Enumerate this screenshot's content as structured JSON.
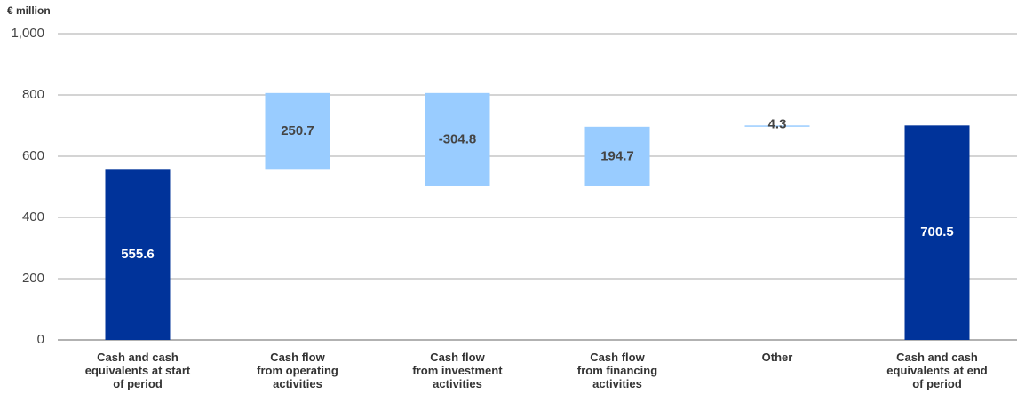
{
  "chart_data": {
    "type": "waterfall",
    "y_unit": "€ million",
    "categories": [
      "Cash and cash\nequivalents at start\nof period",
      "Cash flow\nfrom operating\nactivities",
      "Cash flow\nfrom investment\nactivities",
      "Cash flow\nfrom financing\nactivities",
      "Other",
      "Cash and cash\nequivalents at end\nof period"
    ],
    "values": [
      555.6,
      250.7,
      -304.8,
      194.7,
      4.3,
      700.5
    ],
    "measure": [
      "absolute",
      "relative",
      "relative",
      "relative",
      "relative",
      "total"
    ],
    "colors": {
      "absolute": "#00339a",
      "relative": "#99ccff",
      "total": "#00339a"
    },
    "label_colors": {
      "absolute": "#ffffff",
      "relative": "#444444",
      "total": "#ffffff"
    },
    "ylim": [
      0,
      1000
    ],
    "yticks": [
      0,
      200,
      400,
      600,
      800,
      {
        "value": 1000,
        "label": "1,000"
      }
    ],
    "grid": true
  }
}
